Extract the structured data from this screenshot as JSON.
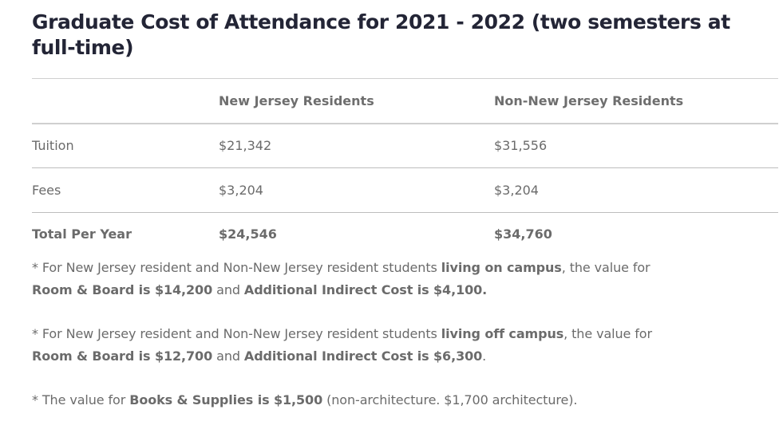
{
  "title": "Graduate Cost of Attendance for 2021 - 2022 (two semesters at full-time)",
  "table": {
    "headers": [
      "",
      "New Jersey Residents",
      "Non-New Jersey Residents"
    ],
    "rows": [
      {
        "label": "Tuition",
        "nj": "$21,342",
        "non_nj": "$31,556"
      },
      {
        "label": "Fees",
        "nj": "$3,204",
        "non_nj": "$3,204"
      }
    ],
    "total": {
      "label": "Total Per Year",
      "nj": "$24,546",
      "non_nj": "$34,760"
    }
  },
  "notes": [
    {
      "p1": "* For New Jersey resident and Non-New Jersey resident students ",
      "b1": "living on campus",
      "p2": ", the value for ",
      "b2": "Room & Board is $14,200",
      "p3": " and ",
      "b3": "Additional Indirect Cost is $4,100.",
      "p4": ""
    },
    {
      "p1": "* For New Jersey resident and Non-New Jersey resident students ",
      "b1": "living off campus",
      "p2": ", the value for ",
      "b2": "Room & Board is $12,700",
      "p3": " and ",
      "b3": "Additional Indirect Cost is $6,300",
      "p4": "."
    },
    {
      "p1": "* The value for ",
      "b1": "Books & Supplies is $1,500",
      "p2": " (non-architecture. $1,700 architecture)."
    }
  ]
}
